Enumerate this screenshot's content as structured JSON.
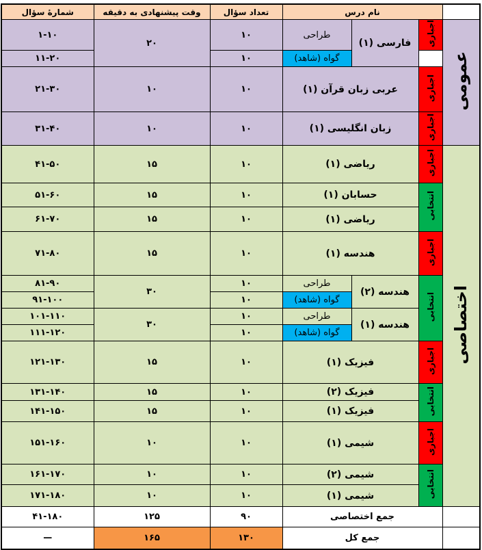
{
  "header": {
    "num": "شمارهٔ سؤال",
    "time": "وقت پیشنهادی به دقیقه",
    "count": "تعداد سؤال",
    "name": "نام درس"
  },
  "groups": {
    "general": "عمومی",
    "special": "اختصاصی"
  },
  "types": {
    "mandatory": "اجباری",
    "elective": "انتخابی"
  },
  "colors": {
    "header": "#fcd5b4",
    "general": "#ccc0da",
    "special": "#d8e4bc",
    "mandatory": "#ff0000",
    "elective": "#00b050",
    "witness": "#00b0f0",
    "grand_total": "#f79646"
  },
  "rows": [
    {
      "num": "۱-۱۰",
      "time": "۲۰",
      "count": "۱۰",
      "name": "فارسی (۱)",
      "sub": "طراحی",
      "type": "اجباری"
    },
    {
      "num": "۱۱-۲۰",
      "count": "۱۰",
      "sub": "گواه (شاهد)"
    },
    {
      "num": "۲۱-۳۰",
      "time": "۱۰",
      "count": "۱۰",
      "name": "عربی زبان قرآن (۱)",
      "type": "اجباری"
    },
    {
      "num": "۳۱-۴۰",
      "time": "۱۰",
      "count": "۱۰",
      "name": "زبان انگلیسی (۱)",
      "type": "اجباری"
    },
    {
      "num": "۴۱-۵۰",
      "time": "۱۵",
      "count": "۱۰",
      "name": "ریاضی (۱)",
      "type": "اجباری"
    },
    {
      "num": "۵۱-۶۰",
      "time": "۱۵",
      "count": "۱۰",
      "name": "حسابان (۱)",
      "type": "انتخابی"
    },
    {
      "num": "۶۱-۷۰",
      "time": "۱۵",
      "count": "۱۰",
      "name": "ریاضی (۱)"
    },
    {
      "num": "۷۱-۸۰",
      "time": "۱۵",
      "count": "۱۰",
      "name": "هندسه (۱)",
      "type": "اجباری"
    },
    {
      "num": "۸۱-۹۰",
      "time": "۳۰",
      "count": "۱۰",
      "name": "هندسه (۲)",
      "sub": "طراحی",
      "type": "انتخابی"
    },
    {
      "num": "۹۱-۱۰۰",
      "count": "۱۰",
      "sub": "گواه (شاهد)"
    },
    {
      "num": "۱۰۱-۱۱۰",
      "time": "۳۰",
      "count": "۱۰",
      "name": "هندسه (۱)",
      "sub": "طراحی"
    },
    {
      "num": "۱۱۱-۱۲۰",
      "count": "۱۰",
      "sub": "گواه (شاهد)"
    },
    {
      "num": "۱۲۱-۱۳۰",
      "time": "۱۵",
      "count": "۱۰",
      "name": "فیزیک (۱)",
      "type": "اجباری"
    },
    {
      "num": "۱۳۱-۱۴۰",
      "time": "۱۵",
      "count": "۱۰",
      "name": "فیزیک (۲)",
      "type": "انتخابی"
    },
    {
      "num": "۱۴۱-۱۵۰",
      "time": "۱۵",
      "count": "۱۰",
      "name": "فیزیک (۱)"
    },
    {
      "num": "۱۵۱-۱۶۰",
      "time": "۱۰",
      "count": "۱۰",
      "name": "شیمی (۱)",
      "type": "اجباری"
    },
    {
      "num": "۱۶۱-۱۷۰",
      "time": "۱۰",
      "count": "۱۰",
      "name": "شیمی (۲)",
      "type": "انتخابی"
    },
    {
      "num": "۱۷۱-۱۸۰",
      "time": "۱۰",
      "count": "۱۰",
      "name": "شیمی (۱)"
    }
  ],
  "totals": [
    {
      "label": "جمع اختصاصی",
      "count": "۹۰",
      "time": "۱۲۵",
      "num": "۴۱-۱۸۰"
    },
    {
      "label": "جمع کل",
      "count": "۱۳۰",
      "time": "۱۶۵",
      "num": "—"
    }
  ]
}
